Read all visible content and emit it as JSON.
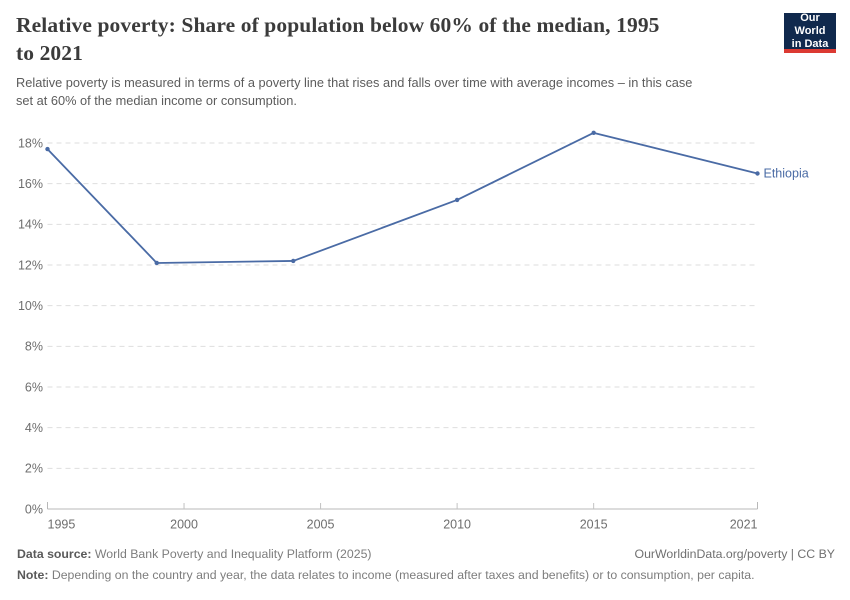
{
  "header": {
    "title_line1": "Relative poverty: Share of population below 60% of the median, 1995",
    "title_line2": "to 2021",
    "subtitle_line1": "Relative poverty is measured in terms of a poverty line that rises and falls over time with average incomes – in this case",
    "subtitle_line2": "set at 60% of the median income or consumption.",
    "logo_line1": "Our World",
    "logo_line2": "in Data",
    "logo_bg": "#10294d",
    "logo_accent": "#dc3a32"
  },
  "chart_data": {
    "type": "line",
    "title": "Relative poverty: Share of population below 60% of the median, 1995 to 2021",
    "xlabel": "",
    "ylabel": "",
    "x": [
      1995,
      1999,
      2004,
      2010,
      2015,
      2021
    ],
    "series": [
      {
        "name": "Ethiopia",
        "color": "#4a6ba5",
        "values": [
          17.7,
          12.1,
          12.2,
          15.2,
          18.5,
          16.5
        ]
      }
    ],
    "end_label": "Ethiopia",
    "xticks": [
      1995,
      2000,
      2005,
      2010,
      2015,
      2021
    ],
    "xtick_labels": [
      "1995",
      "2000",
      "2005",
      "2010",
      "2015",
      "2021"
    ],
    "yticks": [
      0,
      2,
      4,
      6,
      8,
      10,
      12,
      14,
      16,
      18
    ],
    "ytick_suffix": "%",
    "xlim": [
      1995,
      2021
    ],
    "ylim": [
      0,
      18
    ],
    "grid": "horizontal-dashed",
    "legend_position": "series-end-label",
    "colors": {
      "grid": "#dedede",
      "axis": "#b8b8b8",
      "tick": "#c2c2c2",
      "tick_label": "#6e6e6e"
    }
  },
  "footer": {
    "datasource_label": "Data source:",
    "datasource_text": " World Bank Poverty and Inequality Platform (2025)",
    "rights": "OurWorldinData.org/poverty | CC BY",
    "note_label": "Note:",
    "note_text": " Depending on the country and year, the data relates to income (measured after taxes and benefits) or to consumption, per capita."
  }
}
